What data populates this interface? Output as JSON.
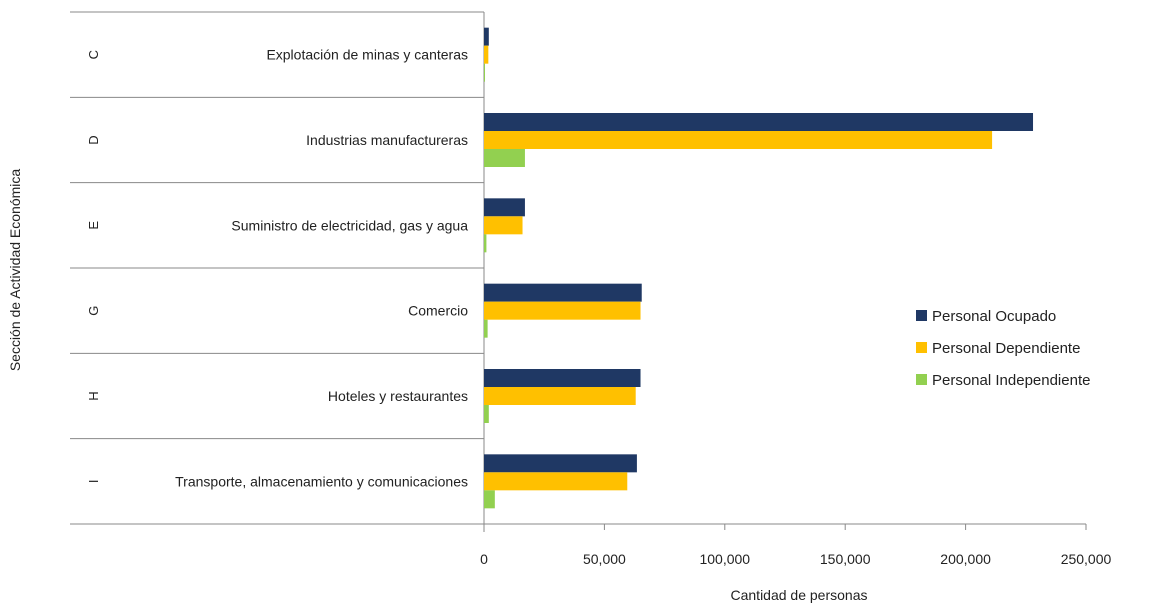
{
  "chart_data": {
    "type": "bar",
    "orientation": "horizontal",
    "xlabel": "Cantidad de personas",
    "ylabel": "Sección de Actividad Económica",
    "xlim": [
      0,
      250000
    ],
    "x_ticks": [
      "0",
      "50,000",
      "100,000",
      "150,000",
      "200,000",
      "250,000"
    ],
    "x_tick_values": [
      0,
      50000,
      100000,
      150000,
      200000,
      250000
    ],
    "grid": false,
    "legend_position": "right",
    "codes": [
      "C",
      "D",
      "E",
      "G",
      "H",
      "I"
    ],
    "categories": [
      "Explotación de minas y canteras",
      "Industrias manufactureras",
      "Suministro de electricidad, gas y agua",
      "Comercio",
      "Hoteles y restaurantes",
      "Transporte, almacenamiento y comunicaciones"
    ],
    "series": [
      {
        "name": "Personal Ocupado",
        "color": "#1f3864",
        "values": [
          2000,
          228000,
          17000,
          65500,
          65000,
          63500
        ]
      },
      {
        "name": "Personal Dependiente",
        "color": "#ffc000",
        "values": [
          1800,
          211000,
          16000,
          65000,
          63000,
          59500
        ]
      },
      {
        "name": "Personal Independiente",
        "color": "#92d050",
        "values": [
          300,
          17000,
          1000,
          1500,
          2000,
          4500
        ]
      }
    ]
  }
}
